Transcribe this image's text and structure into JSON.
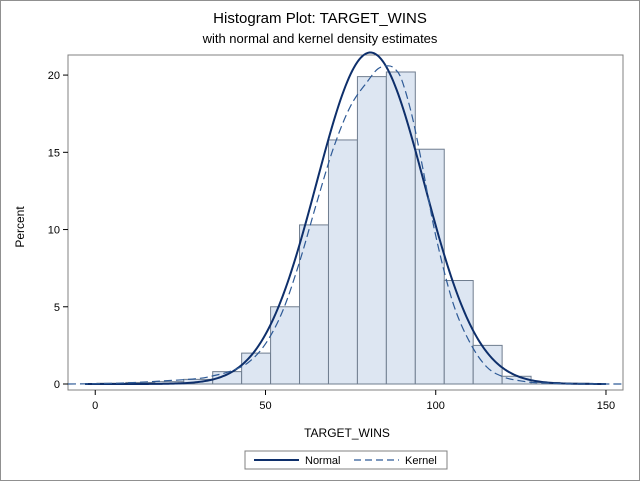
{
  "chart_data": {
    "type": "bar",
    "title": "Histogram Plot: TARGET_WINS",
    "subtitle": "with normal and kernel density estimates",
    "xlabel": "TARGET_WINS",
    "ylabel": "Percent",
    "xlim": [
      -8,
      155
    ],
    "ylim": [
      0,
      21.3
    ],
    "xticks": [
      0,
      50,
      100,
      150
    ],
    "yticks": [
      0,
      5,
      10,
      15,
      20
    ],
    "bin_width": 8.5,
    "bins": [
      {
        "start": 0.5,
        "value": 0.05
      },
      {
        "start": 9,
        "value": 0.1
      },
      {
        "start": 17.5,
        "value": 0.15
      },
      {
        "start": 26,
        "value": 0.3
      },
      {
        "start": 34.5,
        "value": 0.8
      },
      {
        "start": 43,
        "value": 2.0
      },
      {
        "start": 51.5,
        "value": 5.0
      },
      {
        "start": 60,
        "value": 10.3
      },
      {
        "start": 68.5,
        "value": 15.8
      },
      {
        "start": 77,
        "value": 19.9
      },
      {
        "start": 85.5,
        "value": 20.2
      },
      {
        "start": 94,
        "value": 15.2
      },
      {
        "start": 102.5,
        "value": 6.7
      },
      {
        "start": 111,
        "value": 2.5
      },
      {
        "start": 119.5,
        "value": 0.5
      },
      {
        "start": 128,
        "value": 0.1
      },
      {
        "start": 136.5,
        "value": 0.05
      }
    ],
    "normal": {
      "mean": 80.8,
      "sd": 15.8,
      "x_range": [
        -3,
        150
      ]
    },
    "kernel": {
      "x": [
        -10,
        0,
        10,
        20,
        30,
        35,
        40,
        45,
        50,
        55,
        60,
        65,
        70,
        75,
        80,
        83,
        86,
        88,
        90,
        93,
        96,
        100,
        105,
        110,
        115,
        120,
        125,
        130,
        140,
        150,
        160
      ],
      "y": [
        0.0,
        0.02,
        0.08,
        0.2,
        0.35,
        0.55,
        0.85,
        1.4,
        2.6,
        4.7,
        7.9,
        11.7,
        15.3,
        18.0,
        19.6,
        20.4,
        20.6,
        20.4,
        19.7,
        17.4,
        14.2,
        9.6,
        5.3,
        2.7,
        1.1,
        0.45,
        0.2,
        0.08,
        0.02,
        0.0,
        0.0
      ]
    },
    "series": [
      {
        "name": "Normal",
        "color": "#0e2f6b",
        "style": "solid"
      },
      {
        "name": "Kernel",
        "color": "#2e5a96",
        "style": "dashed"
      }
    ],
    "bar_fill": "#dde6f2",
    "bar_stroke": "#6f7d8f",
    "grid": false,
    "legend_position": "bottom-center"
  }
}
